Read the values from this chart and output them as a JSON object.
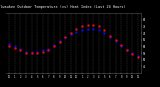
{
  "title": "Milwaukee Outdoor Temperature (vs) Heat Index (Last 24 Hours)",
  "bg_color": "#000000",
  "plot_bg": "#000000",
  "title_bg": "#000000",
  "title_color": "#ffffff",
  "grid_color": "#555555",
  "temp_color": "#0000ff",
  "heat_color": "#ff0000",
  "temp_x": [
    0,
    1,
    2,
    3,
    4,
    5,
    6,
    7,
    8,
    9,
    10,
    11,
    12,
    13,
    14,
    15,
    16,
    17,
    18,
    19,
    20,
    21,
    22,
    23
  ],
  "temp_y": [
    62,
    60,
    58,
    56,
    56,
    56,
    57,
    58,
    61,
    64,
    67,
    69,
    71,
    72,
    73,
    73,
    72,
    70,
    67,
    64,
    60,
    57,
    55,
    53
  ],
  "heat_x": [
    0,
    1,
    2,
    3,
    4,
    5,
    6,
    7,
    8,
    9,
    10,
    11,
    12,
    13,
    14,
    15,
    16,
    17,
    18,
    19,
    20,
    21,
    22,
    23
  ],
  "heat_y": [
    60,
    59,
    57,
    55,
    55,
    55,
    56,
    57,
    60,
    63,
    67,
    70,
    73,
    75,
    76,
    76,
    75,
    72,
    68,
    65,
    61,
    57,
    54,
    52
  ],
  "ylim": [
    40,
    85
  ],
  "xlim": [
    -0.5,
    23.5
  ],
  "yticks": [
    45,
    50,
    55,
    60,
    65,
    70,
    75,
    80
  ],
  "xtick_labels": [
    "12",
    "1",
    "2",
    "3",
    "4",
    "5",
    "6",
    "7",
    "8",
    "9",
    "10",
    "11",
    "12",
    "1",
    "2",
    "3",
    "4",
    "5",
    "6",
    "7",
    "8",
    "9",
    "10",
    "11"
  ],
  "figsize": [
    1.6,
    0.87
  ],
  "dpi": 100
}
